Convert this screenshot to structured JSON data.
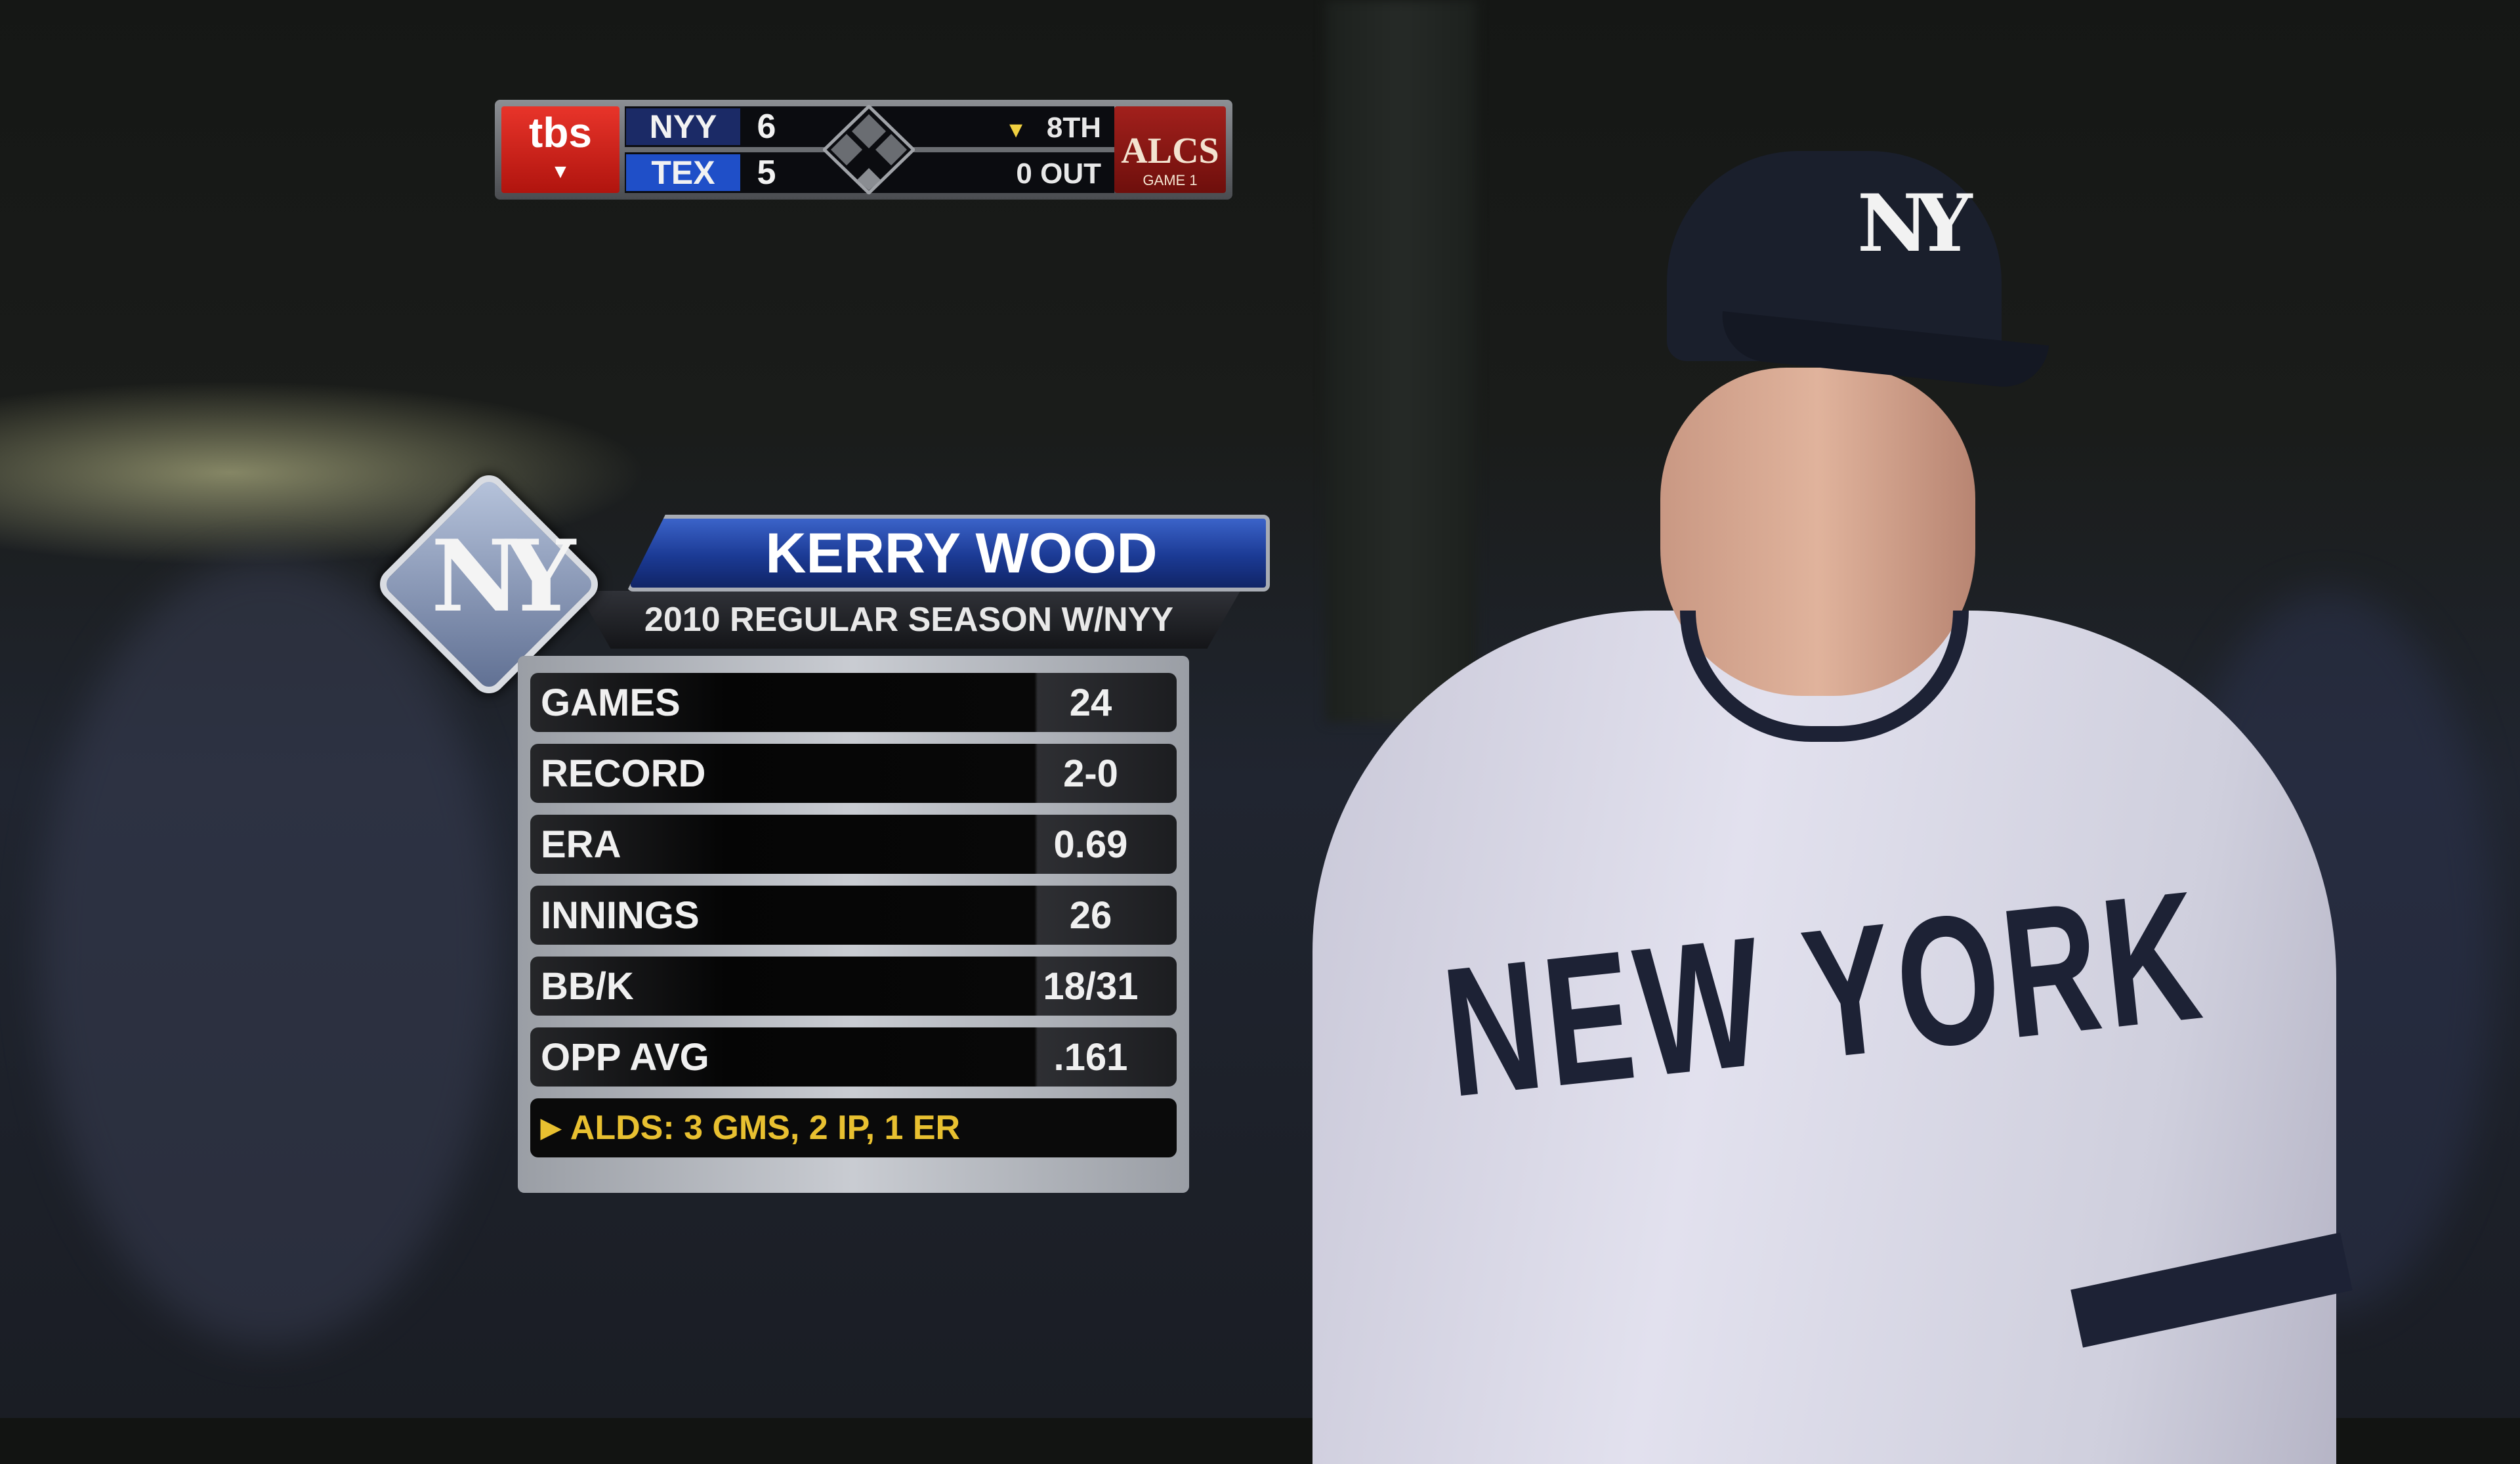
{
  "scorebug": {
    "network": "tbs",
    "teams": [
      {
        "abbr": "NYY",
        "score": "6",
        "color": "#1b2a66"
      },
      {
        "abbr": "TEX",
        "score": "5",
        "color": "#1f4fc8"
      }
    ],
    "inning_arrow": "down-triangle-icon",
    "inning": "8TH",
    "outs": "0 OUT",
    "series": "ALCS",
    "game": "GAME 1"
  },
  "player_card": {
    "team_logo": "NY",
    "name": "KERRY WOOD",
    "subtitle": "2010 REGULAR SEASON W/NYY",
    "stats": [
      {
        "label": "GAMES",
        "value": "24"
      },
      {
        "label": "RECORD",
        "value": "2-0"
      },
      {
        "label": "ERA",
        "value": "0.69"
      },
      {
        "label": "INNINGS",
        "value": "26"
      },
      {
        "label": "BB/K",
        "value": "18/31"
      },
      {
        "label": "OPP AVG",
        "value": ".161"
      }
    ],
    "note": "ALDS: 3 GMS, 2 IP, 1 ER",
    "note_color": "#e8c030",
    "accent": "#1b3a94"
  },
  "photo": {
    "cap_logo": "NY",
    "jersey_text": "NEW YORK"
  }
}
